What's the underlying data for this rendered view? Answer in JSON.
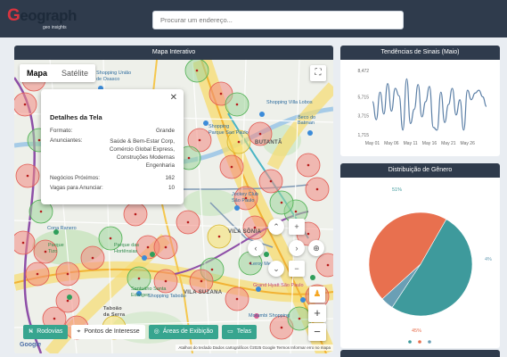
{
  "app": {
    "logo_text": "Geograph",
    "logo_tagline": "geo insights",
    "colors": {
      "header": "#2f3b4c",
      "accent": "#37a58f",
      "brand_red": "#d9343f"
    }
  },
  "search": {
    "placeholder": "Procurar um endereço..."
  },
  "map_card": {
    "title": "Mapa Interativo",
    "map_type": {
      "options": [
        "Mapa",
        "Satélite"
      ],
      "selected": "Mapa"
    },
    "labels": {
      "shopping_osasco": "Shopping União\nde Osasco",
      "shopping_villa_lobos": "Shopping Villa Lobos",
      "beco_batman": "Beco do Batman",
      "butanta": "BUTANTÃ",
      "pin": "PIN",
      "shopping_sao_paulo": "Shopping\nParque Sao Paulo",
      "jockey": "Jockey Club\nSão Paulo",
      "morumbi_town": "Morumbi Town",
      "vila_sonia": "VILA SÔNIA",
      "sao_paulo_hospital": "ão Paulo",
      "leroy": "Leroy Merlin",
      "grand_hyatt": "Grand Hyatt São Paulo",
      "parque_hortensias": "Parque das\nHortênsias",
      "santuario": "Santuário Santa\nEdwiges",
      "shopping_taboao": "Shopping Taboão",
      "vila_suzana": "VILA SUZANA",
      "morumbi_shopping": "Morumbi Shopping",
      "taboao_serra": "Taboão\nda Serra",
      "parque": "Parque\nTizo",
      "cona_ranero": "Cona Ranero",
      "campo_limpo": "CAMPO LIMPO"
    },
    "popup": {
      "title": "Detalhes da Tela",
      "format_label": "Formato:",
      "format_value": "Grande",
      "advertisers_label": "Anunciantes:",
      "advertisers_value": [
        "Saúde & Bem-Estar Corp,",
        "Comércio Global Express,",
        "Construções Modernas",
        "Engenharia"
      ],
      "nearby_label": "Negócios Próximos:",
      "nearby_value": "162",
      "vacancies_label": "Vagas para Anunciar:",
      "vacancies_value": "10"
    },
    "layer_buttons": [
      {
        "label": "Rodovias",
        "icon": "road-icon",
        "active": true
      },
      {
        "label": "Pontos de Interesse",
        "icon": "pin-icon",
        "active": false
      },
      {
        "label": "Áreas de Exibição",
        "icon": "target-icon",
        "active": true
      },
      {
        "label": "Telas",
        "icon": "screen-icon",
        "active": true
      }
    ],
    "google": "Google",
    "attribution": "Atalhos do teclado   Dados cartográficos ©2025 Google   Termos   Informar erro no mapa"
  },
  "trend_card": {
    "title": "Tendências de Sinais (Maio)",
    "chart_data": {
      "type": "line",
      "title": "Tendências de Sinais (Maio)",
      "y_ticks": [
        "8,472",
        "5,715",
        "3,715",
        "1,715"
      ],
      "x_ticks": [
        "May 01",
        "May 06",
        "May 11",
        "May 16",
        "May 21",
        "May 26"
      ],
      "ylim": [
        1715,
        8472
      ],
      "x": [
        1,
        2,
        3,
        4,
        5,
        6,
        7,
        8,
        9,
        10,
        11,
        12,
        13,
        14,
        15,
        16,
        17,
        18,
        19,
        20,
        21,
        22,
        23,
        24,
        25,
        26,
        27,
        28,
        29,
        30,
        31
      ],
      "values": [
        5200,
        3300,
        6200,
        3900,
        7100,
        4200,
        6600,
        5800,
        2200,
        7600,
        2900,
        4400,
        7000,
        3600,
        5200,
        6800,
        2500,
        2200,
        6200,
        3000,
        4900,
        6600,
        3800,
        5400,
        2200,
        6400,
        5400,
        6100,
        6400,
        5700,
        4700
      ],
      "color": "#5b7fa6"
    }
  },
  "gender_card": {
    "title": "Distribuição de Gênero",
    "chart_data": {
      "type": "pie",
      "slices": [
        {
          "value": 51,
          "label": "51%",
          "color": "#3e9a9c"
        },
        {
          "value": 45,
          "label": "45%",
          "color": "#e8704f"
        },
        {
          "value": 4,
          "label": "4%",
          "color": "#6a9fb5"
        }
      ],
      "legend_colors": [
        "#3e9a9c",
        "#e8704f",
        "#6a9fb5"
      ]
    }
  }
}
